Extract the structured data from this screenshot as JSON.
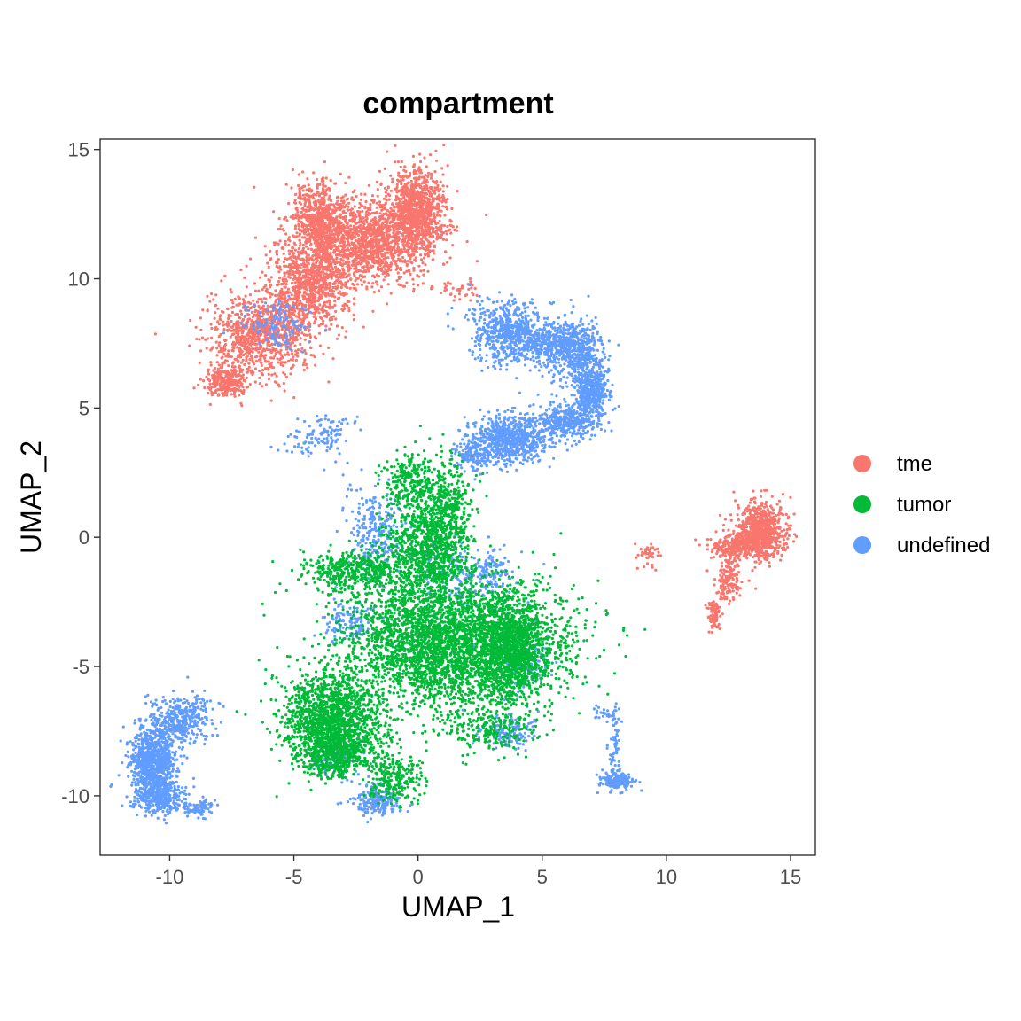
{
  "chart_data": {
    "type": "scatter",
    "title": "compartment",
    "xlabel": "UMAP_1",
    "ylabel": "UMAP_2",
    "xlim": [
      -12.8,
      16
    ],
    "ylim": [
      -12.3,
      15.4
    ],
    "xticks": [
      -10,
      -5,
      0,
      5,
      10,
      15
    ],
    "yticks": [
      -10,
      -5,
      0,
      5,
      10,
      15
    ],
    "xtick_labels": [
      "-10",
      "-5",
      "0",
      "5",
      "10",
      "15"
    ],
    "ytick_labels": [
      "-10",
      "-5",
      "0",
      "5",
      "10",
      "15"
    ],
    "grid": false,
    "legend_position": "right",
    "series": [
      {
        "name": "tme",
        "color": "#F8766D",
        "regions": [
          {
            "cx": 0.0,
            "cy": 12.7,
            "sx": 0.55,
            "sy": 0.8,
            "n": 900
          },
          {
            "cx": -2.0,
            "cy": 11.5,
            "sx": 1.3,
            "sy": 0.8,
            "n": 1500
          },
          {
            "cx": -4.0,
            "cy": 12.4,
            "sx": 0.5,
            "sy": 0.7,
            "n": 500
          },
          {
            "cx": -4.3,
            "cy": 9.8,
            "sx": 0.8,
            "sy": 0.9,
            "n": 900
          },
          {
            "cx": -6.4,
            "cy": 7.8,
            "sx": 1.0,
            "sy": 0.8,
            "n": 900
          },
          {
            "cx": -7.7,
            "cy": 6.0,
            "sx": 0.4,
            "sy": 0.3,
            "n": 300
          },
          {
            "cx": 1.5,
            "cy": 9.6,
            "sx": 0.5,
            "sy": 0.2,
            "n": 40
          },
          {
            "cx": 13.8,
            "cy": 0.2,
            "sx": 0.5,
            "sy": 0.55,
            "n": 800
          },
          {
            "cx": 12.8,
            "cy": -0.4,
            "sx": 0.5,
            "sy": 0.3,
            "n": 250
          },
          {
            "cx": 12.5,
            "cy": -1.7,
            "sx": 0.2,
            "sy": 0.4,
            "n": 130
          },
          {
            "cx": 11.9,
            "cy": -3.0,
            "sx": 0.15,
            "sy": 0.3,
            "n": 80
          },
          {
            "cx": 9.3,
            "cy": -0.7,
            "sx": 0.2,
            "sy": 0.25,
            "n": 40
          }
        ]
      },
      {
        "name": "tumor",
        "color": "#00BA38",
        "regions": [
          {
            "cx": 0.3,
            "cy": -0.5,
            "sx": 0.8,
            "sy": 1.4,
            "n": 1100
          },
          {
            "cx": 1.5,
            "cy": -4.2,
            "sx": 2.2,
            "sy": 1.2,
            "n": 3500
          },
          {
            "cx": 3.8,
            "cy": -4.3,
            "sx": 0.7,
            "sy": 1.0,
            "n": 900
          },
          {
            "cx": -3.5,
            "cy": -7.0,
            "sx": 1.0,
            "sy": 0.9,
            "n": 1400
          },
          {
            "cx": -3.2,
            "cy": -8.3,
            "sx": 0.7,
            "sy": 0.5,
            "n": 500
          },
          {
            "cx": -2.5,
            "cy": -1.3,
            "sx": 1.1,
            "sy": 0.4,
            "n": 450
          },
          {
            "cx": 1.3,
            "cy": 1.0,
            "sx": 0.4,
            "sy": 1.0,
            "n": 300
          },
          {
            "cx": -1.0,
            "cy": -9.3,
            "sx": 0.6,
            "sy": 0.5,
            "n": 250
          },
          {
            "cx": 2.8,
            "cy": -7.4,
            "sx": 1.0,
            "sy": 0.4,
            "n": 200
          },
          {
            "cx": -0.3,
            "cy": 2.2,
            "sx": 0.5,
            "sy": 0.5,
            "n": 200
          }
        ]
      },
      {
        "name": "undefined",
        "color": "#619CFF",
        "regions": [
          {
            "cx": 3.6,
            "cy": 7.9,
            "sx": 0.8,
            "sy": 0.6,
            "n": 600
          },
          {
            "cx": 5.3,
            "cy": 7.5,
            "sx": 0.6,
            "sy": 0.4,
            "n": 300
          },
          {
            "cx": 6.4,
            "cy": 7.2,
            "sx": 0.5,
            "sy": 0.6,
            "n": 450
          },
          {
            "cx": 7.0,
            "cy": 5.6,
            "sx": 0.35,
            "sy": 0.5,
            "n": 450
          },
          {
            "cx": 6.0,
            "cy": 4.5,
            "sx": 0.6,
            "sy": 0.3,
            "n": 350
          },
          {
            "cx": 3.7,
            "cy": 3.8,
            "sx": 0.8,
            "sy": 0.45,
            "n": 700
          },
          {
            "cx": 2.3,
            "cy": 3.2,
            "sx": 0.4,
            "sy": 0.3,
            "n": 150
          },
          {
            "cx": -10.7,
            "cy": -8.7,
            "sx": 0.45,
            "sy": 0.7,
            "n": 900
          },
          {
            "cx": -10.3,
            "cy": -10.1,
            "sx": 0.5,
            "sy": 0.35,
            "n": 300
          },
          {
            "cx": -9.5,
            "cy": -7.0,
            "sx": 0.6,
            "sy": 0.5,
            "n": 350
          },
          {
            "cx": -8.8,
            "cy": -10.5,
            "sx": 0.3,
            "sy": 0.2,
            "n": 80
          },
          {
            "cx": -3.9,
            "cy": 3.9,
            "sx": 0.7,
            "sy": 0.4,
            "n": 120
          },
          {
            "cx": -5.7,
            "cy": 8.2,
            "sx": 0.7,
            "sy": 0.5,
            "n": 120
          },
          {
            "cx": -1.7,
            "cy": 0.2,
            "sx": 0.5,
            "sy": 0.8,
            "n": 250
          },
          {
            "cx": -2.8,
            "cy": -3.3,
            "sx": 0.5,
            "sy": 0.4,
            "n": 120
          },
          {
            "cx": -1.6,
            "cy": -10.2,
            "sx": 0.5,
            "sy": 0.3,
            "n": 200
          },
          {
            "cx": -3.3,
            "cy": -8.6,
            "sx": 0.5,
            "sy": 0.4,
            "n": 100
          },
          {
            "cx": 3.5,
            "cy": -7.5,
            "sx": 0.6,
            "sy": 0.3,
            "n": 150
          },
          {
            "cx": 1.8,
            "cy": -1.5,
            "sx": 1.0,
            "sy": 0.6,
            "n": 180
          },
          {
            "cx": 3.0,
            "cy": -1.3,
            "sx": 0.4,
            "sy": 0.3,
            "n": 80
          },
          {
            "cx": 8.0,
            "cy": -9.4,
            "sx": 0.35,
            "sy": 0.18,
            "n": 180
          },
          {
            "cx": 7.9,
            "cy": -8.0,
            "sx": 0.15,
            "sy": 0.6,
            "n": 50
          },
          {
            "cx": 7.6,
            "cy": -6.8,
            "sx": 0.25,
            "sy": 0.15,
            "n": 30
          },
          {
            "cx": 4.2,
            "cy": -4.8,
            "sx": 0.6,
            "sy": 0.6,
            "n": 150
          }
        ]
      }
    ]
  }
}
